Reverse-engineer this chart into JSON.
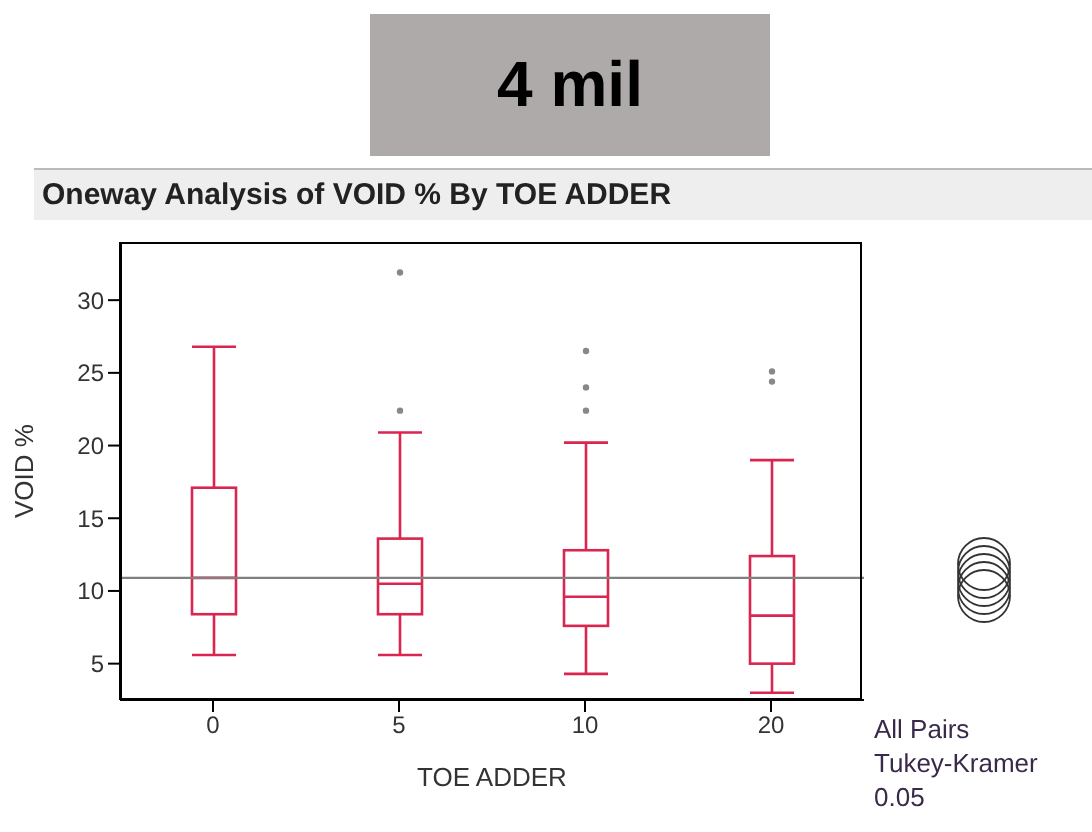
{
  "chart_data": {
    "type": "box",
    "title": "4 mil",
    "subtitle": "Oneway Analysis of VOID % By TOE ADDER",
    "xlabel": "TOE ADDER",
    "ylabel": "VOID %",
    "categories": [
      "0",
      "5",
      "10",
      "20"
    ],
    "color": "#d9254f",
    "boxes": [
      {
        "low": 5.6,
        "q1": 8.4,
        "median": 10.9,
        "q3": 17.1,
        "high": 26.8
      },
      {
        "low": 5.6,
        "q1": 8.4,
        "median": 10.5,
        "q3": 13.6,
        "high": 20.9,
        "outliers": [
          31.9,
          22.4
        ]
      },
      {
        "low": 4.3,
        "q1": 7.6,
        "median": 9.6,
        "q3": 12.8,
        "high": 20.2,
        "outliers": [
          26.5,
          24.0,
          22.4
        ]
      },
      {
        "low": 3.0,
        "q1": 5.0,
        "median": 8.3,
        "q3": 12.4,
        "high": 19.0,
        "outliers": [
          25.1,
          24.4
        ]
      }
    ],
    "ylim": [
      2.5,
      34
    ],
    "yticks": [
      5,
      10,
      15,
      20,
      25,
      30
    ],
    "ref_lines": [
      {
        "axis": "y",
        "value": 10.9,
        "color": "#808080"
      }
    ],
    "annotations": [
      "All Pairs",
      "Tukey-Kramer",
      "0.05"
    ]
  }
}
